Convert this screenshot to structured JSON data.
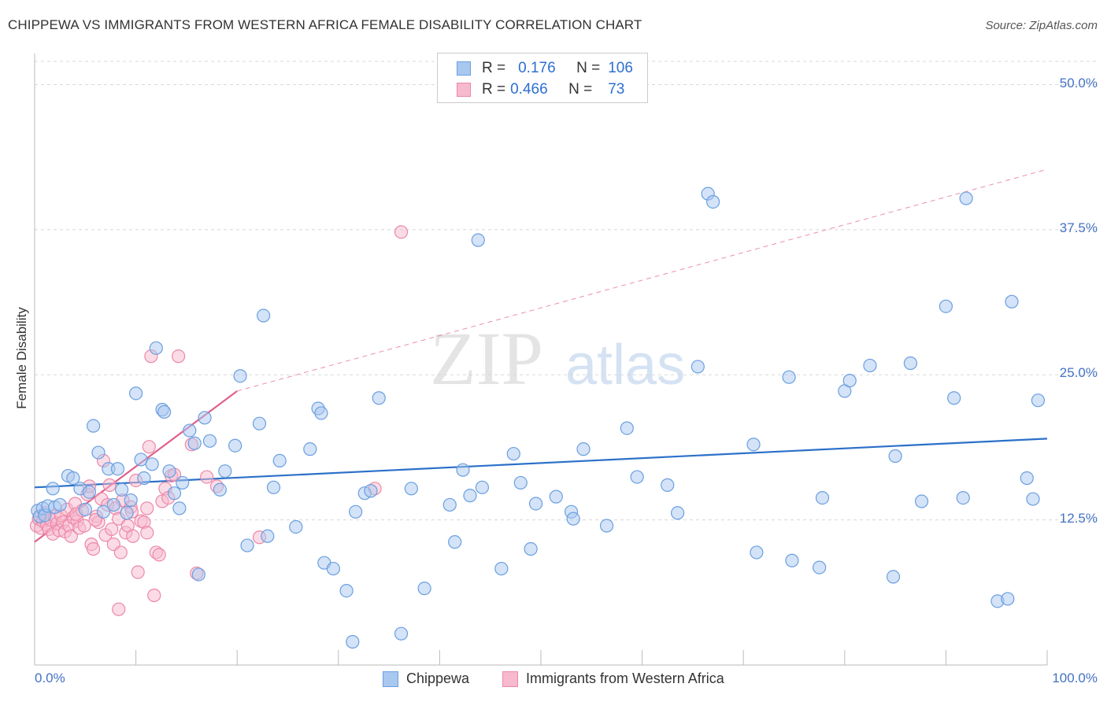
{
  "title": "CHIPPEWA VS IMMIGRANTS FROM WESTERN AFRICA FEMALE DISABILITY CORRELATION CHART",
  "source": "Source: ZipAtlas.com",
  "watermark": {
    "zip": "ZIP",
    "atlas": "atlas"
  },
  "legend": {
    "rows": [
      {
        "r_label": "R =",
        "r_value": "0.176",
        "n_label": "N =",
        "n_value": "106"
      },
      {
        "r_label": "R =",
        "r_value": "0.466",
        "n_label": "N =",
        "n_value": "73"
      }
    ]
  },
  "colors": {
    "blue_fill": "#a9c8f0",
    "blue_stroke": "#6a9fe0",
    "blue_line": "#2b70c9",
    "pink_fill": "#f7b9ce",
    "pink_stroke": "#ec88a8",
    "pink_line": "#e0608e",
    "grid": "#d8d8d8",
    "axis": "#bbbbbb",
    "tick_text": "#4472c4"
  },
  "chart_data": {
    "type": "scatter",
    "title": "CHIPPEWA VS IMMIGRANTS FROM WESTERN AFRICA FEMALE DISABILITY CORRELATION CHART",
    "xlabel": "",
    "ylabel": "Female Disability",
    "xlim": [
      0,
      100
    ],
    "ylim": [
      0,
      52
    ],
    "y_ticks": [
      12.5,
      25.0,
      37.5,
      50.0
    ],
    "y_tick_labels": [
      "12.5%",
      "25.0%",
      "37.5%",
      "50.0%"
    ],
    "x_tick_labels": [
      "0.0%",
      "100.0%"
    ],
    "grid": true,
    "legend_position": "bottom",
    "series": [
      {
        "name": "Chippewa",
        "r": 0.176,
        "n": 106,
        "trend": {
          "x": [
            0,
            100
          ],
          "y": [
            15.3,
            19.5
          ],
          "style": "solid"
        },
        "points": [
          [
            0.3,
            13.3
          ],
          [
            0.5,
            12.8
          ],
          [
            0.8,
            13.5
          ],
          [
            1.0,
            12.9
          ],
          [
            1.3,
            13.7
          ],
          [
            1.8,
            15.2
          ],
          [
            2.0,
            13.6
          ],
          [
            2.5,
            13.8
          ],
          [
            3.3,
            16.3
          ],
          [
            3.8,
            16.1
          ],
          [
            4.5,
            15.2
          ],
          [
            5.0,
            13.4
          ],
          [
            5.4,
            14.9
          ],
          [
            5.8,
            20.6
          ],
          [
            6.3,
            18.3
          ],
          [
            6.8,
            13.2
          ],
          [
            7.3,
            16.9
          ],
          [
            7.8,
            13.8
          ],
          [
            8.2,
            16.9
          ],
          [
            8.6,
            15.1
          ],
          [
            9.1,
            13.1
          ],
          [
            9.5,
            14.2
          ],
          [
            10.0,
            23.4
          ],
          [
            10.5,
            17.7
          ],
          [
            10.8,
            16.1
          ],
          [
            11.6,
            17.3
          ],
          [
            12.0,
            27.3
          ],
          [
            12.6,
            22.0
          ],
          [
            12.8,
            21.8
          ],
          [
            13.3,
            16.7
          ],
          [
            13.8,
            14.8
          ],
          [
            14.3,
            13.5
          ],
          [
            14.6,
            15.7
          ],
          [
            15.3,
            20.2
          ],
          [
            15.8,
            19.1
          ],
          [
            16.2,
            7.8
          ],
          [
            16.8,
            21.3
          ],
          [
            17.3,
            19.3
          ],
          [
            18.3,
            15.1
          ],
          [
            18.8,
            16.7
          ],
          [
            19.8,
            18.9
          ],
          [
            20.3,
            24.9
          ],
          [
            21.0,
            10.3
          ],
          [
            22.2,
            20.8
          ],
          [
            22.6,
            30.1
          ],
          [
            23.0,
            11.1
          ],
          [
            23.6,
            15.3
          ],
          [
            24.2,
            17.6
          ],
          [
            25.8,
            11.9
          ],
          [
            27.2,
            18.6
          ],
          [
            28.0,
            22.1
          ],
          [
            28.3,
            21.7
          ],
          [
            28.6,
            8.8
          ],
          [
            29.5,
            8.3
          ],
          [
            30.8,
            6.4
          ],
          [
            31.4,
            2.0
          ],
          [
            31.7,
            13.2
          ],
          [
            32.6,
            14.8
          ],
          [
            33.2,
            15.0
          ],
          [
            34.0,
            23.0
          ],
          [
            36.2,
            2.7
          ],
          [
            37.2,
            15.2
          ],
          [
            38.5,
            6.6
          ],
          [
            41.0,
            13.8
          ],
          [
            41.5,
            10.6
          ],
          [
            42.3,
            16.8
          ],
          [
            43.0,
            14.6
          ],
          [
            43.8,
            36.6
          ],
          [
            44.2,
            15.3
          ],
          [
            46.1,
            8.3
          ],
          [
            47.3,
            18.2
          ],
          [
            48.0,
            15.7
          ],
          [
            49.0,
            10.0
          ],
          [
            49.5,
            13.9
          ],
          [
            51.5,
            14.5
          ],
          [
            53.0,
            13.2
          ],
          [
            53.2,
            12.6
          ],
          [
            54.2,
            18.6
          ],
          [
            56.5,
            12.0
          ],
          [
            58.5,
            20.4
          ],
          [
            59.5,
            16.2
          ],
          [
            62.5,
            15.5
          ],
          [
            63.5,
            13.1
          ],
          [
            65.5,
            25.7
          ],
          [
            66.5,
            40.6
          ],
          [
            67.0,
            39.9
          ],
          [
            71.0,
            19.0
          ],
          [
            71.3,
            9.7
          ],
          [
            74.5,
            24.8
          ],
          [
            74.8,
            9.0
          ],
          [
            77.5,
            8.4
          ],
          [
            77.8,
            14.4
          ],
          [
            80.0,
            23.6
          ],
          [
            80.5,
            24.5
          ],
          [
            82.5,
            25.8
          ],
          [
            84.8,
            7.6
          ],
          [
            85.0,
            18.0
          ],
          [
            86.5,
            26.0
          ],
          [
            87.6,
            14.1
          ],
          [
            90.0,
            30.9
          ],
          [
            90.8,
            23.0
          ],
          [
            91.7,
            14.4
          ],
          [
            92.0,
            40.2
          ],
          [
            95.1,
            5.5
          ],
          [
            96.1,
            5.7
          ],
          [
            96.5,
            31.3
          ],
          [
            98.0,
            16.1
          ],
          [
            98.6,
            14.3
          ],
          [
            99.1,
            22.8
          ]
        ]
      },
      {
        "name": "Immigrants from Western Africa",
        "r": 0.466,
        "n": 73,
        "trend": {
          "x": [
            0,
            20
          ],
          "y": [
            10.6,
            23.6
          ],
          "style": "solid",
          "extension": {
            "x": [
              20,
              100
            ],
            "y": [
              23.6,
              42.7
            ],
            "style": "dashed"
          }
        },
        "points": [
          [
            0.2,
            12.0
          ],
          [
            0.4,
            12.6
          ],
          [
            0.6,
            11.8
          ],
          [
            0.8,
            12.4
          ],
          [
            1.0,
            13.1
          ],
          [
            1.2,
            12.1
          ],
          [
            1.4,
            11.7
          ],
          [
            1.6,
            12.5
          ],
          [
            1.8,
            11.3
          ],
          [
            2.0,
            12.8
          ],
          [
            2.2,
            12.2
          ],
          [
            2.4,
            11.6
          ],
          [
            2.6,
            12.9
          ],
          [
            2.8,
            12.3
          ],
          [
            3.0,
            11.5
          ],
          [
            3.2,
            13.4
          ],
          [
            3.4,
            12.0
          ],
          [
            3.6,
            11.1
          ],
          [
            3.8,
            12.7
          ],
          [
            4.0,
            13.9
          ],
          [
            4.2,
            12.4
          ],
          [
            4.4,
            11.8
          ],
          [
            4.7,
            13.3
          ],
          [
            4.9,
            12.0
          ],
          [
            5.2,
            14.7
          ],
          [
            5.4,
            15.4
          ],
          [
            5.6,
            10.4
          ],
          [
            5.8,
            10.0
          ],
          [
            6.1,
            12.8
          ],
          [
            6.3,
            12.3
          ],
          [
            6.6,
            14.3
          ],
          [
            6.8,
            17.6
          ],
          [
            7.0,
            11.2
          ],
          [
            7.2,
            13.8
          ],
          [
            7.4,
            15.5
          ],
          [
            7.6,
            11.7
          ],
          [
            7.8,
            10.4
          ],
          [
            8.0,
            13.5
          ],
          [
            8.3,
            12.6
          ],
          [
            8.5,
            9.7
          ],
          [
            8.7,
            14.2
          ],
          [
            9.0,
            11.4
          ],
          [
            9.2,
            12.0
          ],
          [
            9.5,
            13.6
          ],
          [
            9.7,
            11.1
          ],
          [
            10.0,
            15.9
          ],
          [
            10.2,
            8.0
          ],
          [
            10.5,
            12.4
          ],
          [
            10.8,
            12.3
          ],
          [
            11.1,
            13.5
          ],
          [
            11.3,
            18.8
          ],
          [
            11.5,
            26.6
          ],
          [
            11.8,
            6.0
          ],
          [
            12.0,
            9.7
          ],
          [
            12.3,
            9.5
          ],
          [
            12.6,
            14.1
          ],
          [
            12.9,
            15.2
          ],
          [
            13.2,
            14.4
          ],
          [
            13.5,
            16.3
          ],
          [
            13.8,
            16.4
          ],
          [
            14.2,
            26.6
          ],
          [
            15.5,
            19.0
          ],
          [
            16.0,
            7.9
          ],
          [
            17.0,
            16.2
          ],
          [
            18.0,
            15.4
          ],
          [
            22.2,
            11.0
          ],
          [
            33.6,
            15.2
          ],
          [
            36.2,
            37.3
          ],
          [
            8.3,
            4.8
          ],
          [
            4.1,
            13.0
          ],
          [
            6.0,
            12.5
          ],
          [
            9.6,
            13.2
          ],
          [
            11.1,
            11.4
          ]
        ]
      }
    ]
  }
}
